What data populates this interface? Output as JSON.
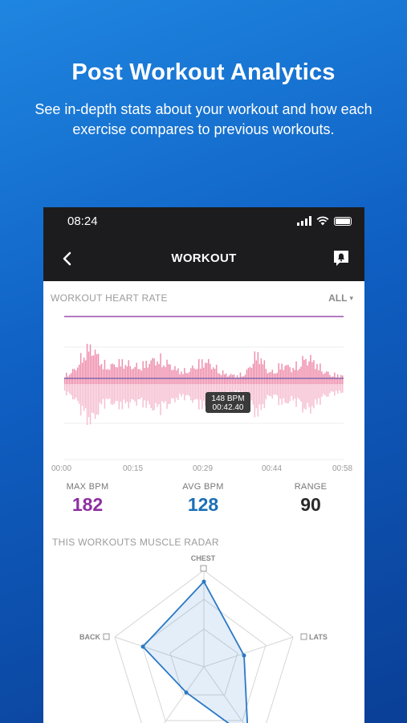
{
  "promo": {
    "title": "Post Workout Analytics",
    "subtitle": "See in-depth stats about your workout and how each exercise compares to previous workouts."
  },
  "status_bar": {
    "time": "08:24"
  },
  "nav": {
    "title": "WORKOUT",
    "back_icon": "chevron-left-icon",
    "message_icon": "bell-message-icon"
  },
  "heart_rate": {
    "section_label": "WORKOUT HEART RATE",
    "filter_label": "ALL",
    "tooltip": {
      "bpm": "148 BPM",
      "time": "00:42.40"
    },
    "x_ticks": [
      "00:00",
      "00:15",
      "00:29",
      "00:44",
      "00:58"
    ]
  },
  "stats": {
    "max": {
      "label": "MAX BPM",
      "value": "182",
      "color": "#8e2fa0"
    },
    "avg": {
      "label": "AVG BPM",
      "value": "128",
      "color": "#1b6fb8"
    },
    "range": {
      "label": "RANGE",
      "value": "90",
      "color": "#2a2a2a"
    }
  },
  "radar": {
    "section_label": "THIS WORKOUTS MUSCLE RADAR",
    "axes": [
      "CHEST",
      "LATS",
      "BACK"
    ]
  },
  "colors": {
    "accent_pink": "#f29bb7",
    "line_purple": "#9b4fae",
    "radar_blue": "#2a78c6"
  }
}
